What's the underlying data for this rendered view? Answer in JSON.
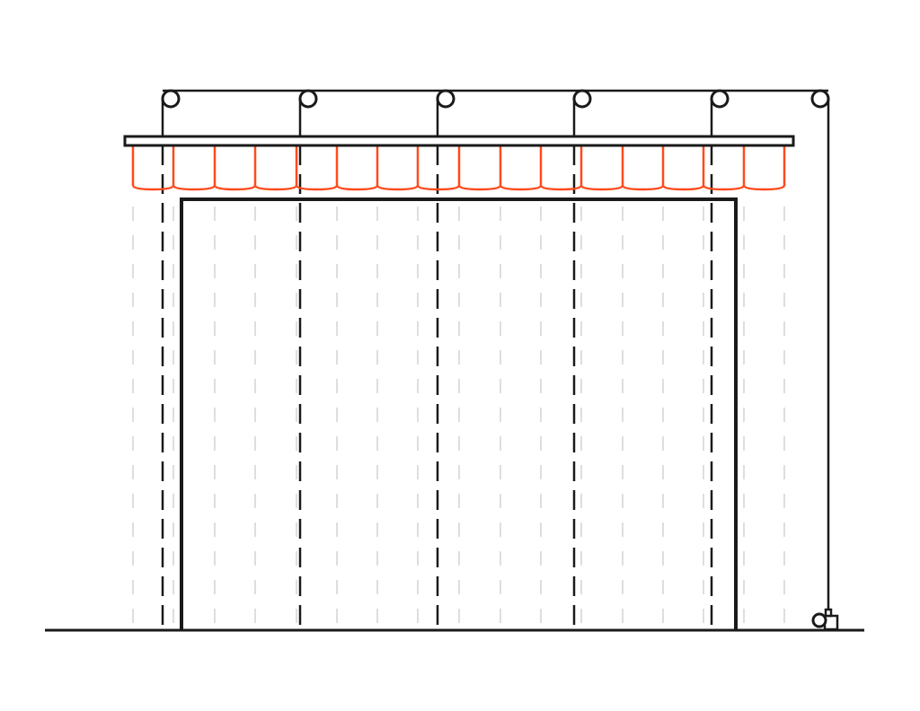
{
  "diagram": {
    "components": [
      "pulleys",
      "top-cord",
      "drop-cords",
      "head-rail",
      "fabric-folds",
      "fabric-guide-lines",
      "door-frame",
      "ground-line",
      "motor"
    ],
    "colors": {
      "line": "#1a1a1a",
      "fabric": "#ff4a1c",
      "guide": "#c8c8c8",
      "background": "#ffffff"
    }
  }
}
